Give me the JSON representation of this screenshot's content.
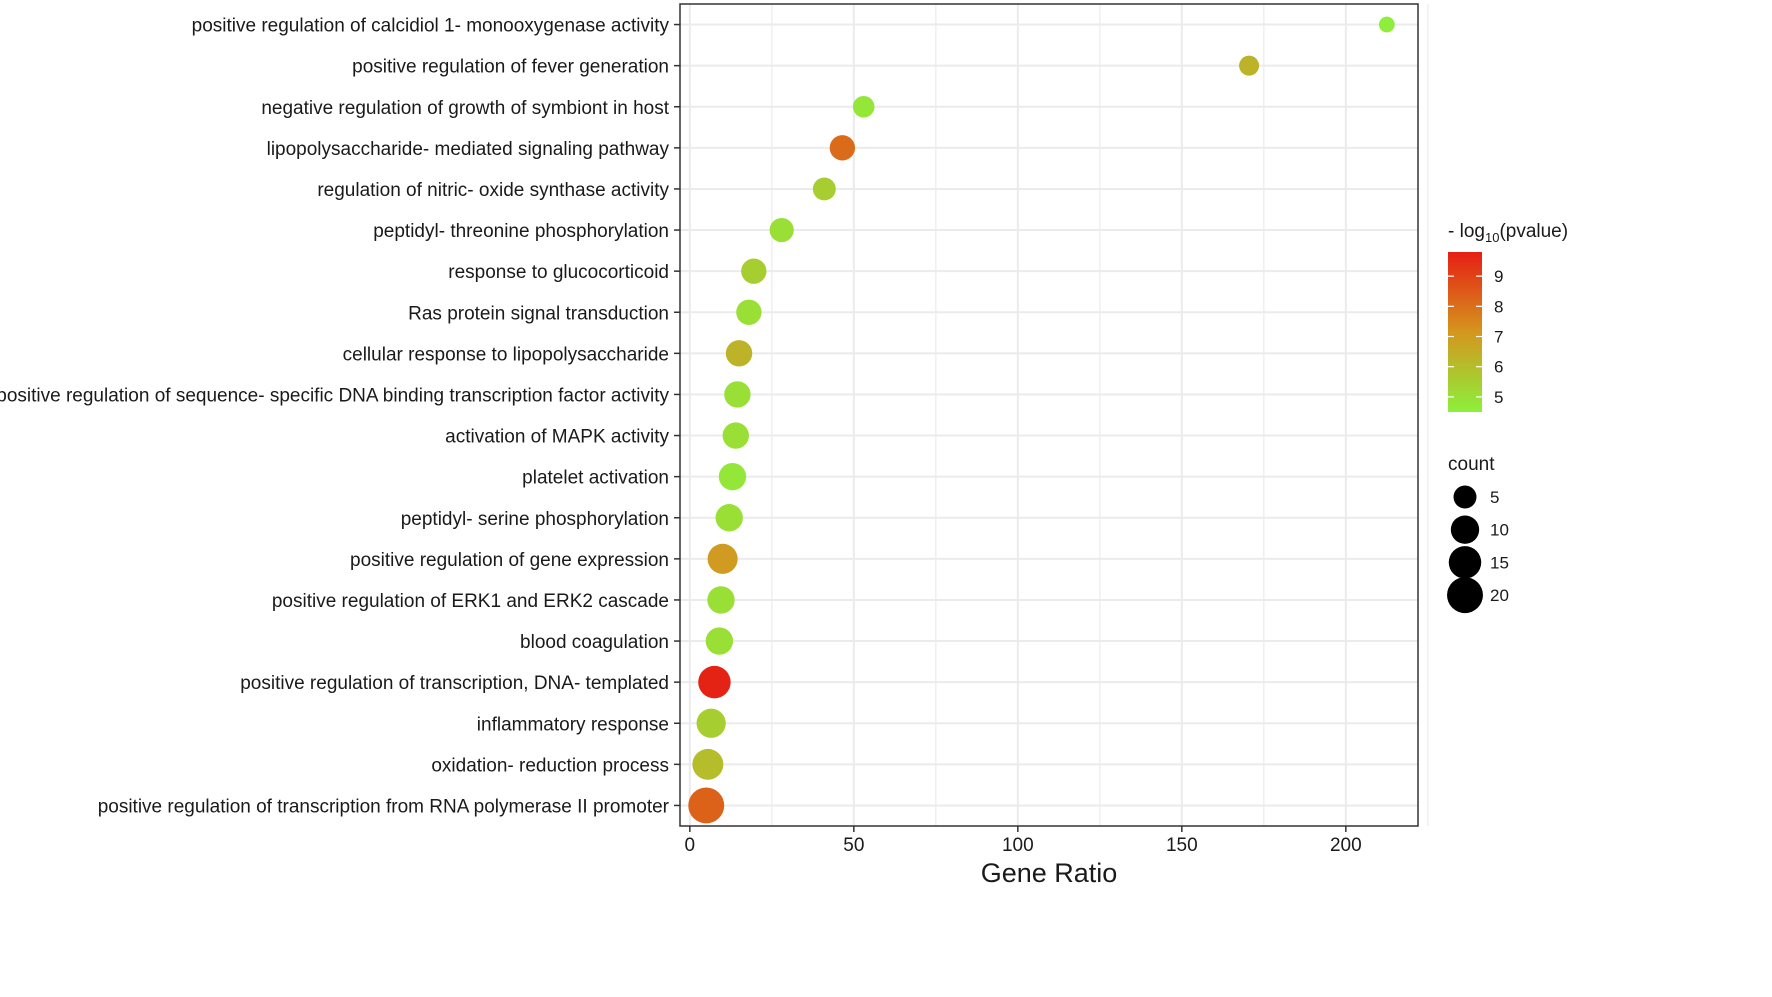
{
  "chart_data": {
    "type": "scatter",
    "title": "",
    "xlabel": "Gene Ratio",
    "ylabel": "",
    "xlim": [
      -3,
      222
    ],
    "x_ticks": [
      0,
      50,
      100,
      150,
      200
    ],
    "x_tick_labels": [
      "0",
      "50",
      "100",
      "150",
      "200"
    ],
    "grid": true,
    "points": [
      {
        "term": "positive regulation of calcidiol 1- monooxygenase activity",
        "gene_ratio": 212.5,
        "count": 1,
        "neg_log10_pvalue": 4.6
      },
      {
        "term": "positive regulation of fever generation",
        "gene_ratio": 170.5,
        "count": 3,
        "neg_log10_pvalue": 6.3
      },
      {
        "term": "negative regulation of growth of symbiont in host",
        "gene_ratio": 53,
        "count": 4,
        "neg_log10_pvalue": 4.8
      },
      {
        "term": "lipopolysaccharide- mediated signaling pathway",
        "gene_ratio": 46.5,
        "count": 7,
        "neg_log10_pvalue": 8.1
      },
      {
        "term": "regulation of nitric- oxide synthase activity",
        "gene_ratio": 41,
        "count": 5,
        "neg_log10_pvalue": 5.5
      },
      {
        "term": "peptidyl- threonine phosphorylation",
        "gene_ratio": 28,
        "count": 6,
        "neg_log10_pvalue": 5.0
      },
      {
        "term": "response to glucocorticoid",
        "gene_ratio": 19.5,
        "count": 7,
        "neg_log10_pvalue": 5.5
      },
      {
        "term": "Ras protein signal transduction",
        "gene_ratio": 18,
        "count": 7,
        "neg_log10_pvalue": 5.0
      },
      {
        "term": "cellular response to lipopolysaccharide",
        "gene_ratio": 15,
        "count": 8,
        "neg_log10_pvalue": 6.3
      },
      {
        "term": "positive regulation of sequence- specific DNA binding transcription factor activity",
        "gene_ratio": 14.5,
        "count": 8,
        "neg_log10_pvalue": 5.0
      },
      {
        "term": "activation of MAPK activity",
        "gene_ratio": 14,
        "count": 8,
        "neg_log10_pvalue": 5.0
      },
      {
        "term": "platelet activation",
        "gene_ratio": 13,
        "count": 9,
        "neg_log10_pvalue": 4.8
      },
      {
        "term": "peptidyl- serine phosphorylation",
        "gene_ratio": 12,
        "count": 9,
        "neg_log10_pvalue": 5.0
      },
      {
        "term": "positive regulation of gene expression",
        "gene_ratio": 10,
        "count": 12,
        "neg_log10_pvalue": 7.0
      },
      {
        "term": "positive regulation of ERK1 and ERK2 cascade",
        "gene_ratio": 9.5,
        "count": 9,
        "neg_log10_pvalue": 5.0
      },
      {
        "term": "blood coagulation",
        "gene_ratio": 9,
        "count": 9,
        "neg_log10_pvalue": 5.0
      },
      {
        "term": "positive regulation of transcription, DNA- templated",
        "gene_ratio": 7.5,
        "count": 15,
        "neg_log10_pvalue": 9.7
      },
      {
        "term": "inflammatory response",
        "gene_ratio": 6.5,
        "count": 11,
        "neg_log10_pvalue": 5.5
      },
      {
        "term": "oxidation- reduction process",
        "gene_ratio": 5.5,
        "count": 13,
        "neg_log10_pvalue": 6.0
      },
      {
        "term": "positive regulation of transcription from RNA polymerase II promoter",
        "gene_ratio": 5,
        "count": 20,
        "neg_log10_pvalue": 8.3
      }
    ],
    "color_legend": {
      "title_prefix": "- log",
      "title_subscript": "10",
      "title_suffix": "(pvalue)",
      "min": 4.5,
      "max": 9.8,
      "ticks": [
        5,
        6,
        7,
        8,
        9
      ],
      "tick_labels": [
        "5",
        "6",
        "7",
        "8",
        "9"
      ],
      "low_color": "#8cf03c",
      "high_color": "#e61e14"
    },
    "size_legend": {
      "title": "count",
      "values": [
        5,
        10,
        15,
        20
      ],
      "labels": [
        "5",
        "10",
        "15",
        "20"
      ]
    }
  }
}
